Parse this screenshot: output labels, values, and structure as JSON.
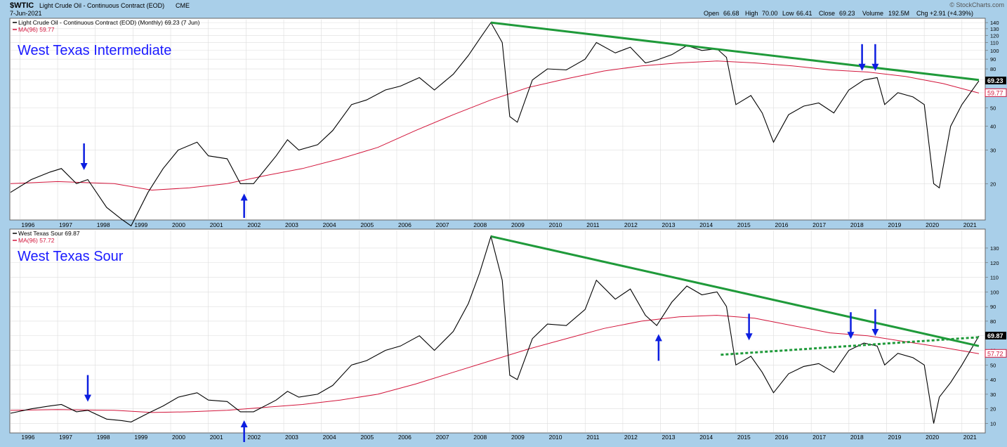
{
  "header": {
    "symbol": "$WTIC",
    "description": "Light Crude Oil - Continuous Contract (EOD)",
    "exchange": "CME",
    "date": "7-Jun-2021",
    "watermark": "© StockCharts.com",
    "quote": {
      "open_label": "Open",
      "open": "66.68",
      "high_label": "High",
      "high": "70.00",
      "low_label": "Low",
      "low": "66.41",
      "close_label": "Close",
      "close": "69.23",
      "volume_label": "Volume",
      "volume": "192.5M",
      "chg_label": "Chg",
      "chg": "+2.91 (+4.39%)"
    }
  },
  "colors": {
    "background": "#a9cfe9",
    "plot": "#ffffff",
    "price": "#000000",
    "ma": "#d2143a",
    "trendline": "#1f9a3a",
    "arrow": "#0c1ee0",
    "label": "#1a1aff",
    "grid": "#dddddd"
  },
  "x_axis_years": [
    "1996",
    "1997",
    "1998",
    "1999",
    "2000",
    "2001",
    "2002",
    "2003",
    "2004",
    "2005",
    "2006",
    "2007",
    "2008",
    "2009",
    "2010",
    "2011",
    "2012",
    "2013",
    "2014",
    "2015",
    "2016",
    "2017",
    "2018",
    "2019",
    "2020",
    "2021"
  ],
  "chart_data": [
    {
      "type": "line",
      "panel": "top",
      "legend_price": "Light Crude Oil - Continuous Contract (EOD) (Monthly) 69.23 (7 Jun)",
      "legend_ma": "MA(96) 59.77",
      "label": "West Texas Intermediate",
      "y_scale": "log",
      "ylim": [
        13,
        145
      ],
      "y_ticks": [
        20,
        30,
        40,
        50,
        60,
        70,
        80,
        90,
        100,
        110,
        120,
        130,
        140
      ],
      "last_price_tag": "69.23",
      "last_ma_tag": "59.77",
      "series": [
        {
          "name": "Light Crude Oil - Continuous Contract (EOD) (Monthly)",
          "x": [
            1995.75,
            1996.3,
            1996.8,
            1997.1,
            1997.5,
            1997.8,
            1998.3,
            1998.7,
            1998.95,
            1999.4,
            1999.8,
            2000.2,
            2000.7,
            2001.0,
            2001.5,
            2001.85,
            2002.2,
            2002.8,
            2003.1,
            2003.4,
            2003.9,
            2004.3,
            2004.8,
            2005.2,
            2005.7,
            2006.1,
            2006.6,
            2007.0,
            2007.5,
            2007.9,
            2008.2,
            2008.5,
            2008.8,
            2009.0,
            2009.2,
            2009.6,
            2010.0,
            2010.5,
            2011.0,
            2011.3,
            2011.8,
            2012.2,
            2012.6,
            2012.9,
            2013.3,
            2013.7,
            2014.1,
            2014.5,
            2014.75,
            2015.0,
            2015.4,
            2015.7,
            2016.0,
            2016.4,
            2016.8,
            2017.2,
            2017.6,
            2018.0,
            2018.4,
            2018.75,
            2018.95,
            2019.3,
            2019.7,
            2020.0,
            2020.25,
            2020.4,
            2020.7,
            2021.0,
            2021.45
          ],
          "values": [
            18,
            21,
            23,
            24,
            20,
            21,
            15,
            13,
            12,
            18,
            24,
            30,
            33,
            28,
            27,
            20,
            20,
            28,
            34,
            30,
            32,
            38,
            52,
            55,
            62,
            65,
            72,
            62,
            75,
            94,
            115,
            140,
            110,
            45,
            42,
            70,
            80,
            79,
            90,
            110,
            97,
            104,
            86,
            89,
            95,
            106,
            100,
            102,
            92,
            52,
            58,
            47,
            33,
            46,
            51,
            53,
            47,
            62,
            70,
            72,
            52,
            60,
            57,
            52,
            20,
            19,
            40,
            52,
            69.23
          ]
        },
        {
          "name": "MA(96)",
          "x": [
            1995.75,
            1997.0,
            1998.5,
            1999.5,
            2000.5,
            2001.5,
            2002.5,
            2003.5,
            2004.5,
            2005.5,
            2006.5,
            2007.5,
            2008.5,
            2009.5,
            2010.5,
            2011.5,
            2012.5,
            2013.5,
            2014.5,
            2015.5,
            2016.5,
            2017.5,
            2018.5,
            2019.5,
            2020.5,
            2021.45
          ],
          "values": [
            20,
            20.5,
            20,
            18.5,
            19,
            20,
            22,
            24,
            27,
            31,
            38,
            46,
            55,
            64,
            71,
            78,
            83,
            86,
            88,
            86,
            83,
            79,
            77,
            73,
            67,
            59.77
          ]
        }
      ],
      "trendline": {
        "x": [
          2008.5,
          2021.45
        ],
        "values": [
          140,
          70
        ]
      }
    },
    {
      "type": "line",
      "panel": "bottom",
      "legend_price": "West Texas Sour 69.87",
      "legend_ma": "MA(96) 57.72",
      "label": "West Texas Sour",
      "y_scale": "linear",
      "ylim": [
        4,
        142
      ],
      "y_ticks": [
        10,
        20,
        30,
        40,
        50,
        60,
        70,
        80,
        90,
        100,
        110,
        120,
        130
      ],
      "last_price_tag": "69.87",
      "last_ma_tag": "57.72",
      "series": [
        {
          "name": "West Texas Sour",
          "x": [
            1995.75,
            1996.3,
            1996.8,
            1997.1,
            1997.5,
            1997.8,
            1998.3,
            1998.7,
            1998.95,
            1999.4,
            1999.8,
            2000.2,
            2000.7,
            2001.0,
            2001.5,
            2001.85,
            2002.2,
            2002.8,
            2003.1,
            2003.4,
            2003.9,
            2004.3,
            2004.8,
            2005.2,
            2005.7,
            2006.1,
            2006.6,
            2007.0,
            2007.5,
            2007.9,
            2008.2,
            2008.5,
            2008.8,
            2009.0,
            2009.2,
            2009.6,
            2010.0,
            2010.5,
            2011.0,
            2011.3,
            2011.8,
            2012.2,
            2012.6,
            2012.9,
            2013.3,
            2013.7,
            2014.1,
            2014.5,
            2014.75,
            2015.0,
            2015.4,
            2015.7,
            2016.0,
            2016.4,
            2016.8,
            2017.2,
            2017.6,
            2018.0,
            2018.4,
            2018.75,
            2018.95,
            2019.3,
            2019.7,
            2020.0,
            2020.25,
            2020.4,
            2020.7,
            2021.0,
            2021.45
          ],
          "values": [
            17,
            20,
            22,
            23,
            18,
            19,
            13,
            12,
            11,
            17,
            22,
            28,
            31,
            26,
            25,
            18,
            18,
            26,
            32,
            28,
            30,
            36,
            50,
            53,
            60,
            63,
            70,
            60,
            73,
            92,
            113,
            138,
            108,
            43,
            40,
            68,
            78,
            77,
            88,
            108,
            95,
            102,
            84,
            77,
            93,
            104,
            98,
            100,
            90,
            50,
            56,
            45,
            31,
            44,
            49,
            51,
            45,
            60,
            65,
            63,
            50,
            58,
            55,
            50,
            10,
            28,
            38,
            50,
            69.87
          ]
        },
        {
          "name": "MA(96)",
          "x": [
            1995.75,
            1997.0,
            1998.5,
            1999.5,
            2000.5,
            2001.5,
            2002.5,
            2003.5,
            2004.5,
            2005.5,
            2006.5,
            2007.5,
            2008.5,
            2009.5,
            2010.5,
            2011.5,
            2012.5,
            2013.5,
            2014.5,
            2015.5,
            2016.5,
            2017.5,
            2018.5,
            2019.5,
            2020.5,
            2021.45
          ],
          "values": [
            19,
            19.5,
            19,
            17.5,
            18,
            19,
            21,
            23,
            26,
            30,
            37,
            45,
            53,
            61,
            68,
            75,
            80,
            83,
            84,
            82,
            77,
            72,
            70,
            66,
            62,
            57.72
          ]
        }
      ],
      "trendline": {
        "x": [
          2008.5,
          2021.45
        ],
        "values": [
          138,
          63
        ]
      },
      "dotted_line": {
        "x": [
          2014.6,
          2021.45
        ],
        "values": [
          57,
          69
        ]
      }
    }
  ],
  "annotations": {
    "top_arrows": [
      {
        "dir": "down",
        "x": 1997.7,
        "value": 22
      },
      {
        "dir": "up",
        "x": 2001.95,
        "value": 19
      },
      {
        "dir": "down",
        "x": 2018.35,
        "value": 73
      },
      {
        "dir": "down",
        "x": 2018.7,
        "value": 73
      }
    ],
    "bottom_arrows": [
      {
        "dir": "down",
        "x": 1997.8,
        "value": 21
      },
      {
        "dir": "up",
        "x": 2001.95,
        "value": 16
      },
      {
        "dir": "up",
        "x": 2012.95,
        "value": 75
      },
      {
        "dir": "down",
        "x": 2015.35,
        "value": 63
      },
      {
        "dir": "down",
        "x": 2018.05,
        "value": 64
      },
      {
        "dir": "down",
        "x": 2018.7,
        "value": 66
      }
    ]
  }
}
